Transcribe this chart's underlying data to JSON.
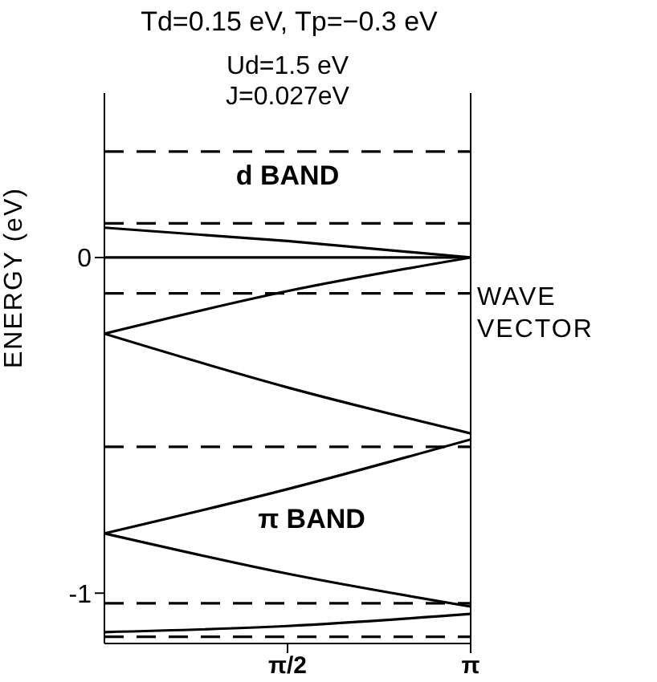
{
  "chart_data": {
    "type": "line",
    "title": "Td=0.15 eV, Tp=−0.3 eV",
    "xlabel": "WAVE VECTOR",
    "ylabel": "ENERGY (eV)",
    "annotations": [
      "Ud=1.5 eV",
      "J=0.027eV",
      "d BAND",
      "π BAND"
    ],
    "xlim": [
      0,
      3.1416
    ],
    "xticks": [
      {
        "value": 1.5708,
        "label": "π/2"
      },
      {
        "value": 3.1416,
        "label": "π"
      }
    ],
    "ylim": [
      -1.15,
      0.49
    ],
    "yticks": [
      0,
      -1
    ],
    "marker": "none",
    "line_style": "solid",
    "series": [
      {
        "color": "#000000",
        "x": [
          0,
          1.5708,
          3.1416
        ],
        "values": [
          0.089,
          0.049,
          0
        ]
      },
      {
        "color": "#000000",
        "x": [
          0,
          3.1416
        ],
        "values": [
          0,
          0
        ]
      },
      {
        "color": "#000000",
        "x": [
          0,
          1.5708,
          3.1416
        ],
        "values": [
          -0.227,
          -0.1,
          0
        ]
      },
      {
        "color": "#000000",
        "x": [
          0,
          1.5708,
          3.1416
        ],
        "values": [
          -0.227,
          -0.387,
          -0.524
        ]
      },
      {
        "color": "#000000",
        "x": [
          0,
          1.5708,
          3.1416
        ],
        "values": [
          -0.822,
          -0.69,
          -0.542
        ]
      },
      {
        "color": "#000000",
        "x": [
          0,
          1.5708,
          3.1416
        ],
        "values": [
          -0.822,
          -0.942,
          -1.04
        ]
      },
      {
        "color": "#000000",
        "x": [
          0,
          1.5708,
          3.1416
        ],
        "values": [
          -1.116,
          -1.098,
          -1.062
        ]
      }
    ],
    "ref_lines": [
      {
        "axis": "y",
        "value": 0.316,
        "line_style": "dashed",
        "color": "#000000"
      },
      {
        "axis": "y",
        "value": 0.102,
        "line_style": "dashed",
        "color": "#000000"
      },
      {
        "axis": "y",
        "value": -0.107,
        "line_style": "dashed",
        "color": "#000000"
      },
      {
        "axis": "y",
        "value": -0.564,
        "line_style": "dashed",
        "color": "#000000"
      },
      {
        "axis": "y",
        "value": -1.03,
        "line_style": "dashed",
        "color": "#000000"
      },
      {
        "axis": "y",
        "value": -1.13,
        "line_style": "dashed",
        "color": "#000000"
      }
    ]
  }
}
